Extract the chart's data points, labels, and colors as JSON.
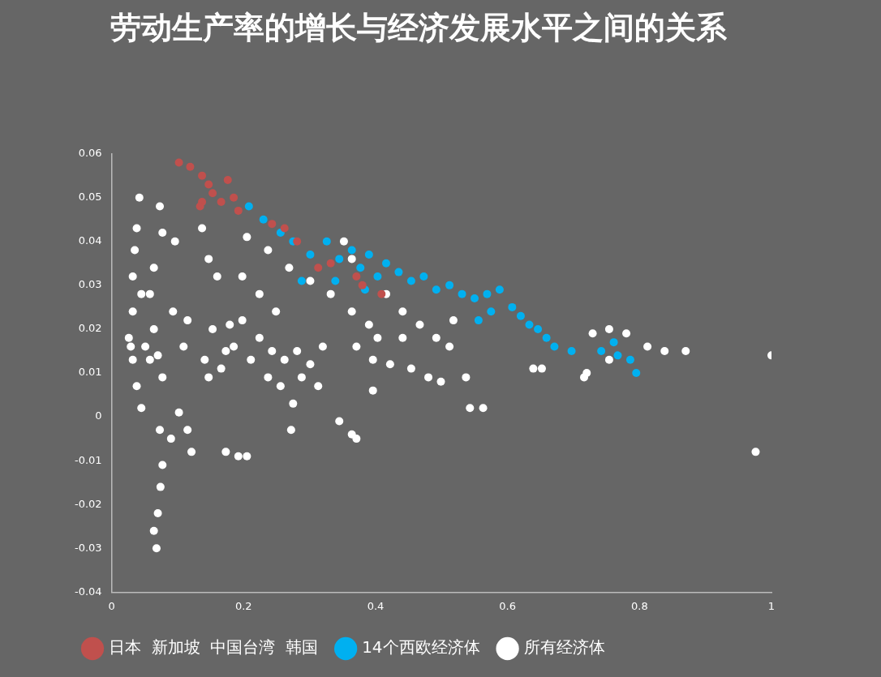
{
  "chart_data": {
    "type": "scatter",
    "title": "劳动生产率的增长与经济发展水平之间的关系",
    "xlim": [
      0,
      1
    ],
    "ylim": [
      -0.04,
      0.06
    ],
    "xticks": [
      0,
      0.2,
      0.4,
      0.6,
      0.8,
      1
    ],
    "yticks": [
      -0.04,
      -0.03,
      -0.02,
      -0.01,
      0,
      0.01,
      0.02,
      0.03,
      0.04,
      0.05,
      0.06
    ],
    "legend": "bottom",
    "marker": "circle",
    "series": [
      {
        "name": "所有经济体",
        "color": "#ffffff",
        "x": [
          0.042,
          0.038,
          0.035,
          0.032,
          0.032,
          0.029,
          0.032,
          0.038,
          0.045,
          0.073,
          0.077,
          0.064,
          0.058,
          0.064,
          0.07,
          0.058,
          0.077,
          0.073,
          0.077,
          0.074,
          0.07,
          0.064,
          0.068,
          0.096,
          0.093,
          0.102,
          0.115,
          0.121,
          0.09,
          0.026,
          0.051,
          0.045,
          0.137,
          0.147,
          0.16,
          0.141,
          0.147,
          0.153,
          0.166,
          0.173,
          0.179,
          0.185,
          0.115,
          0.109,
          0.173,
          0.192,
          0.205,
          0.205,
          0.237,
          0.269,
          0.301,
          0.332,
          0.364,
          0.198,
          0.224,
          0.249,
          0.198,
          0.224,
          0.243,
          0.262,
          0.281,
          0.301,
          0.288,
          0.256,
          0.275,
          0.313,
          0.32,
          0.237,
          0.211,
          0.272,
          0.345,
          0.364,
          0.371,
          0.352,
          0.364,
          0.39,
          0.371,
          0.403,
          0.396,
          0.416,
          0.441,
          0.467,
          0.492,
          0.512,
          0.518,
          0.441,
          0.422,
          0.454,
          0.48,
          0.499,
          0.537,
          0.543,
          0.563,
          0.396,
          0.639,
          0.652,
          0.729,
          0.754,
          0.78,
          0.812,
          0.838,
          0.87,
          0.72,
          0.754,
          0.716,
          1.0,
          0.976
        ],
        "values": [
          0.05,
          0.043,
          0.038,
          0.032,
          0.024,
          0.016,
          0.013,
          0.007,
          0.002,
          0.048,
          0.042,
          0.034,
          0.028,
          0.02,
          0.014,
          0.013,
          0.009,
          -0.003,
          -0.011,
          -0.016,
          -0.022,
          -0.026,
          -0.03,
          0.04,
          0.024,
          0.001,
          -0.003,
          -0.008,
          -0.005,
          0.018,
          0.016,
          0.028,
          0.043,
          0.036,
          0.032,
          0.013,
          0.009,
          0.02,
          0.011,
          0.015,
          0.021,
          0.016,
          0.022,
          0.016,
          -0.008,
          -0.009,
          -0.009,
          0.041,
          0.038,
          0.034,
          0.031,
          0.028,
          0.024,
          0.032,
          0.028,
          0.024,
          0.022,
          0.018,
          0.015,
          0.013,
          0.015,
          0.012,
          0.009,
          0.007,
          0.003,
          0.007,
          0.016,
          0.009,
          0.013,
          -0.003,
          -0.001,
          -0.004,
          -0.005,
          0.04,
          0.036,
          0.021,
          0.016,
          0.018,
          0.013,
          0.028,
          0.024,
          0.021,
          0.018,
          0.016,
          0.022,
          0.018,
          0.012,
          0.011,
          0.009,
          0.008,
          0.009,
          0.002,
          0.002,
          0.006,
          0.011,
          0.011,
          0.019,
          0.02,
          0.019,
          0.016,
          0.015,
          0.015,
          0.01,
          0.013,
          0.009,
          0.014,
          -0.008
        ]
      },
      {
        "name": "14个西欧经济体",
        "color": "#00b0f0",
        "x": [
          0.208,
          0.23,
          0.256,
          0.275,
          0.301,
          0.326,
          0.345,
          0.364,
          0.377,
          0.39,
          0.403,
          0.416,
          0.435,
          0.454,
          0.473,
          0.492,
          0.512,
          0.531,
          0.55,
          0.569,
          0.588,
          0.607,
          0.62,
          0.633,
          0.646,
          0.659,
          0.671,
          0.575,
          0.556,
          0.384,
          0.339,
          0.288,
          0.761,
          0.767,
          0.786,
          0.795,
          0.742,
          0.697
        ],
        "values": [
          0.048,
          0.045,
          0.042,
          0.04,
          0.037,
          0.04,
          0.036,
          0.038,
          0.034,
          0.037,
          0.032,
          0.035,
          0.033,
          0.031,
          0.032,
          0.029,
          0.03,
          0.028,
          0.027,
          0.028,
          0.029,
          0.025,
          0.023,
          0.021,
          0.02,
          0.018,
          0.016,
          0.024,
          0.022,
          0.029,
          0.031,
          0.031,
          0.017,
          0.014,
          0.013,
          0.01,
          0.015,
          0.015
        ]
      },
      {
        "name": "日本  新加坡  中国台湾  韩国",
        "color": "#c0504d",
        "x": [
          0.102,
          0.119,
          0.137,
          0.147,
          0.153,
          0.137,
          0.134,
          0.166,
          0.176,
          0.185,
          0.192,
          0.243,
          0.262,
          0.281,
          0.313,
          0.332,
          0.371,
          0.38,
          0.409
        ],
        "values": [
          0.058,
          0.057,
          0.055,
          0.053,
          0.051,
          0.049,
          0.048,
          0.049,
          0.054,
          0.05,
          0.047,
          0.044,
          0.043,
          0.04,
          0.034,
          0.035,
          0.032,
          0.03,
          0.028
        ]
      }
    ]
  }
}
